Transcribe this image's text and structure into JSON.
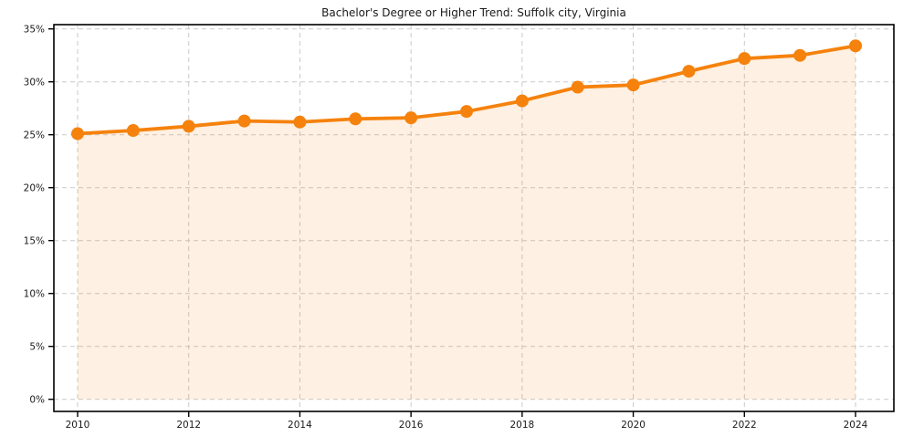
{
  "chart_data": {
    "type": "line",
    "title": "Bachelor's Degree or Higher Trend: Suffolk city, Virginia",
    "x": [
      2010,
      2011,
      2012,
      2013,
      2014,
      2015,
      2016,
      2017,
      2018,
      2019,
      2020,
      2021,
      2022,
      2023,
      2024
    ],
    "series": [
      {
        "name": "Bachelor's Degree or Higher (%)",
        "values": [
          25.1,
          25.4,
          25.8,
          26.3,
          26.2,
          26.5,
          26.6,
          27.2,
          28.2,
          29.5,
          29.7,
          31.0,
          32.2,
          32.5,
          33.4
        ]
      }
    ],
    "xlabel": "",
    "ylabel": "",
    "xlim": [
      2009.3,
      2024.7
    ],
    "ylim": [
      -1.2,
      35.4
    ],
    "x_axis": {
      "ticks": [
        2010,
        2012,
        2014,
        2016,
        2018,
        2020,
        2022,
        2024
      ],
      "labels": [
        "2010",
        "2012",
        "2014",
        "2016",
        "2018",
        "2020",
        "2022",
        "2024"
      ]
    },
    "y_axis": {
      "ticks": [
        0,
        5,
        10,
        15,
        20,
        25,
        30,
        35
      ],
      "labels": [
        "0%",
        "5%",
        "10%",
        "15%",
        "20%",
        "25%",
        "30%",
        "35%"
      ]
    },
    "grid": true,
    "grid_style": "dashed",
    "legend_position": "none",
    "area_fill_under_line": true,
    "marker": "circle",
    "colors": {
      "line": "#f5820d",
      "marker": "#f5820d",
      "area_fill": "rgba(245,130,13,0.12)",
      "grid": "#c9c9c9",
      "axis_spine": "#000000",
      "tick_text": "#1a1a1a",
      "title_text": "#1a1a1a",
      "background": "#ffffff"
    }
  }
}
